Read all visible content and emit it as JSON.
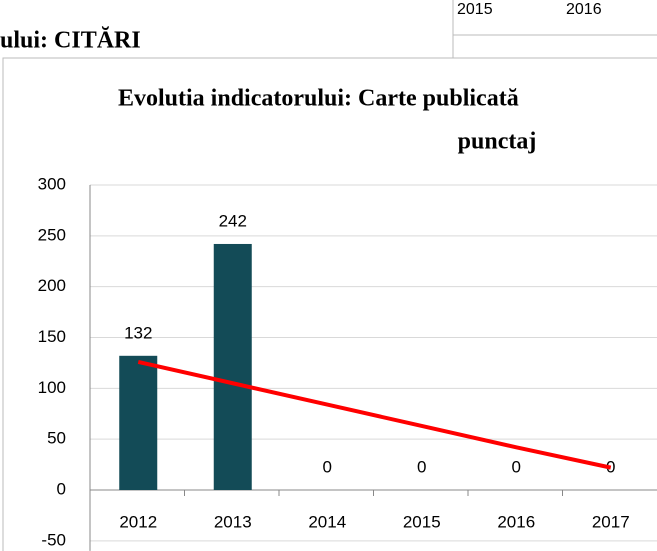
{
  "background": {
    "title": "ului: CITĂRI",
    "labels": [
      "2015",
      "2016"
    ]
  },
  "chart_data": {
    "type": "bar",
    "title": [
      "Evolutia indicatorului: Carte publicată",
      "punctaj"
    ],
    "categories": [
      "2012",
      "2013",
      "2014",
      "2015",
      "2016",
      "2017"
    ],
    "values": [
      132,
      242,
      0,
      0,
      0,
      0
    ],
    "color": "#134b57",
    "trendline": {
      "color": "#ff0000",
      "values": [
        126,
        105,
        84,
        63,
        42,
        22
      ]
    },
    "ylim": [
      -50,
      300
    ],
    "yticks": [
      -50,
      0,
      50,
      100,
      150,
      200,
      250,
      300
    ],
    "grid": true
  }
}
